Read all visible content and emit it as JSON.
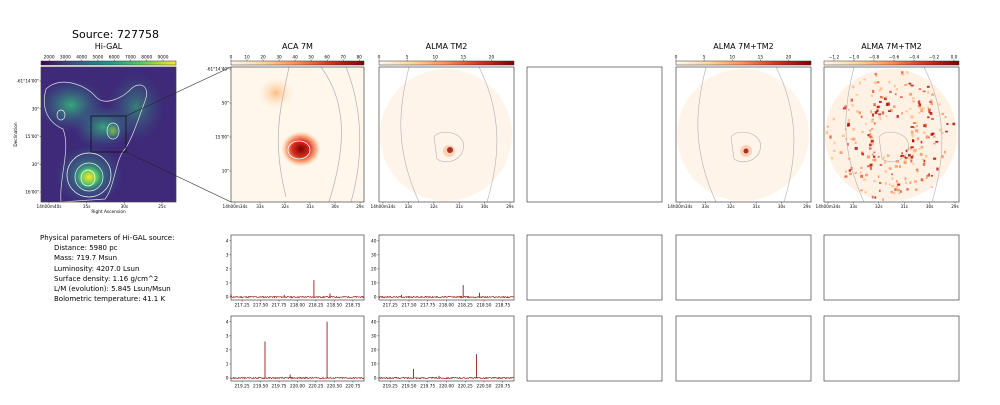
{
  "source_title": "Source: 727758",
  "params": {
    "heading": "Physical parameters of Hi-GAL source:",
    "lines": [
      "Distance: 5980 pc",
      "Mass: 719.7 Msun",
      "Luminosity: 4207.0 Lsun",
      "Surface density: 1.16 g/cm^2",
      "L/M (evolution): 5.845 Lsun/Msun",
      "Bolometric temperature: 41.1 K"
    ]
  },
  "colors": {
    "frame": "#444444",
    "spectrum": "#8b0000",
    "contour": "#b0b0b0"
  },
  "chart_data": [
    {
      "type": "heatmap",
      "title": "Hi-GAL",
      "colorbar": {
        "ticks": [
          "2000",
          "3000",
          "4000",
          "5000",
          "6000",
          "7000",
          "8000",
          "9000"
        ],
        "range": [
          1500,
          9800
        ],
        "colormap": "viridis"
      },
      "xlabel": "Right Ascension",
      "ylabel": "Declination",
      "x_ticks": [
        "14h00m40s",
        "35s",
        "30s",
        "25s"
      ],
      "y_ticks": [
        "-61°14'00\"",
        "30\"",
        "15'00\"",
        "30\"",
        "16'00\""
      ]
    },
    {
      "type": "heatmap",
      "title": "ACA 7M",
      "colorbar": {
        "ticks": [
          "0",
          "10",
          "20",
          "30",
          "40",
          "50",
          "60",
          "70",
          "80"
        ],
        "range": [
          0,
          83
        ],
        "colormap": "OrRd"
      },
      "x_ticks": [
        "14h00m34s",
        "33s",
        "32s",
        "31s",
        "30s",
        "29s"
      ],
      "y_ticks": [
        "-61°14'40\"",
        "50\"",
        "15'00\"",
        "10\""
      ]
    },
    {
      "type": "heatmap",
      "title": "ALMA TM2",
      "colorbar": {
        "ticks": [
          "0",
          "5",
          "10",
          "15",
          "20"
        ],
        "range": [
          0,
          24
        ],
        "colormap": "OrRd"
      },
      "x_ticks": [
        "14h00m34s",
        "33s",
        "32s",
        "31s",
        "30s",
        "29s"
      ]
    },
    {
      "type": "heatmap",
      "title": ""
    },
    {
      "type": "heatmap",
      "title": "ALMA 7M+TM2",
      "colorbar": {
        "ticks": [
          "0",
          "5",
          "10",
          "15",
          "20"
        ],
        "range": [
          0,
          24
        ],
        "colormap": "OrRd"
      },
      "x_ticks": [
        "14h00m34s",
        "33s",
        "32s",
        "31s",
        "30s",
        "29s"
      ]
    },
    {
      "type": "heatmap",
      "title": "ALMA 7M+TM2",
      "colorbar": {
        "ticks": [
          "−1.2",
          "−1.0",
          "−0.8",
          "−0.6",
          "−0.4",
          "−0.2",
          "0.0"
        ],
        "range": [
          -1.3,
          0.05
        ],
        "colormap": "OrRd"
      },
      "x_ticks": [
        "14h00m34s",
        "33s",
        "32s",
        "31s",
        "30s",
        "29s"
      ]
    },
    {
      "type": "line",
      "title": "",
      "xlim": [
        217.1,
        218.9
      ],
      "ylim": [
        0,
        4.2
      ],
      "x_ticks": [
        217.25,
        217.5,
        217.75,
        218.0,
        218.25,
        218.5,
        218.75
      ],
      "y_ticks": [
        0,
        1,
        2,
        3,
        4
      ],
      "peaks": [
        {
          "x": 218.222,
          "y": 1.2
        },
        {
          "x": 218.44,
          "y": 0.25
        },
        {
          "x": 217.82,
          "y": 0.15
        },
        {
          "x": 217.1,
          "y": 0.2
        }
      ]
    },
    {
      "type": "line",
      "title": "",
      "xlim": [
        217.1,
        218.9
      ],
      "ylim": [
        0,
        42
      ],
      "x_ticks": [
        217.25,
        217.5,
        217.75,
        218.0,
        218.25,
        218.5,
        218.75
      ],
      "y_ticks": [
        0,
        10,
        20,
        30,
        40
      ],
      "peaks": [
        {
          "x": 218.222,
          "y": 8.5
        },
        {
          "x": 218.44,
          "y": 3.0
        },
        {
          "x": 217.4,
          "y": 1.5
        }
      ]
    },
    {
      "type": "line",
      "title": "",
      "xlim": [
        219.1,
        220.9
      ],
      "ylim": [
        0,
        4.2
      ],
      "x_ticks": [
        219.25,
        219.5,
        219.75,
        220.0,
        220.25,
        220.5,
        220.75
      ],
      "y_ticks": [
        0,
        1,
        2,
        3,
        4
      ],
      "peaks": [
        {
          "x": 219.56,
          "y": 2.6
        },
        {
          "x": 220.4,
          "y": 4.0
        },
        {
          "x": 219.9,
          "y": 0.25
        }
      ]
    },
    {
      "type": "line",
      "title": "",
      "xlim": [
        219.1,
        220.9
      ],
      "ylim": [
        0,
        42
      ],
      "x_ticks": [
        219.25,
        219.5,
        219.75,
        220.0,
        220.25,
        220.5,
        220.75
      ],
      "y_ticks": [
        0,
        10,
        20,
        30,
        40
      ],
      "peaks": [
        {
          "x": 219.56,
          "y": 6.5
        },
        {
          "x": 220.4,
          "y": 17.0
        },
        {
          "x": 219.9,
          "y": 1.5
        }
      ]
    }
  ]
}
